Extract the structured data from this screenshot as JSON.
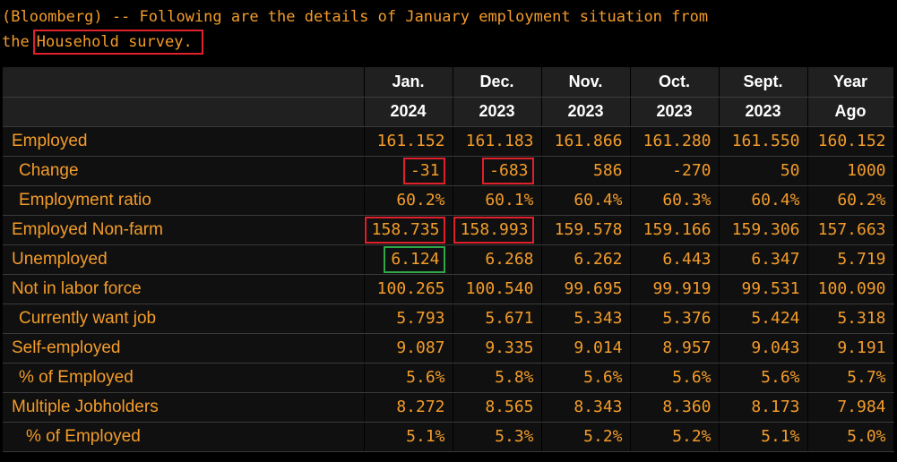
{
  "intro": {
    "line1": "(Bloomberg) -- Following are the details of January employment situation from",
    "line2_prefix": "the",
    "line2_highlight": "Household survey."
  },
  "table": {
    "columns": [
      {
        "top": "Jan.",
        "bottom": "2024"
      },
      {
        "top": "Dec.",
        "bottom": "2023"
      },
      {
        "top": "Nov.",
        "bottom": "2023"
      },
      {
        "top": "Oct.",
        "bottom": "2023"
      },
      {
        "top": "Sept.",
        "bottom": "2023"
      },
      {
        "top": "Year",
        "bottom": "Ago"
      }
    ],
    "rows": [
      {
        "label": "Employed",
        "values": [
          "161.152",
          "161.183",
          "161.866",
          "161.280",
          "161.550",
          "160.152"
        ]
      },
      {
        "label": "Change",
        "values": [
          "-31",
          "-683",
          "586",
          "-270",
          "50",
          "1000"
        ]
      },
      {
        "label": "Employment ratio",
        "values": [
          "60.2%",
          "60.1%",
          "60.4%",
          "60.3%",
          "60.4%",
          "60.2%"
        ]
      },
      {
        "label": "Employed Non-farm",
        "values": [
          "158.735",
          "158.993",
          "159.578",
          "159.166",
          "159.306",
          "157.663"
        ]
      },
      {
        "label": "Unemployed",
        "values": [
          "6.124",
          "6.268",
          "6.262",
          "6.443",
          "6.347",
          "5.719"
        ]
      },
      {
        "label": "Not in labor force",
        "values": [
          "100.265",
          "100.540",
          "99.695",
          "99.919",
          "99.531",
          "100.090"
        ]
      },
      {
        "label": "Currently want job",
        "values": [
          "5.793",
          "5.671",
          "5.343",
          "5.376",
          "5.424",
          "5.318"
        ]
      },
      {
        "label": "Self-employed",
        "values": [
          "9.087",
          "9.335",
          "9.014",
          "8.957",
          "9.043",
          "9.191"
        ]
      },
      {
        "label": "% of Employed",
        "values": [
          "5.6%",
          "5.8%",
          "5.6%",
          "5.6%",
          "5.6%",
          "5.7%"
        ]
      },
      {
        "label": "Multiple Jobholders",
        "values": [
          "8.272",
          "8.565",
          "8.343",
          "8.360",
          "8.173",
          "7.984"
        ]
      },
      {
        "label": "% of Employed",
        "values": [
          "5.1%",
          "5.3%",
          "5.2%",
          "5.2%",
          "5.1%",
          "5.0%"
        ]
      }
    ]
  },
  "colors": {
    "text_orange": "#f39c2a",
    "header_white": "#ffffff",
    "highlight_red": "#e0202a",
    "highlight_green": "#2fa84a",
    "background": "#000000"
  }
}
